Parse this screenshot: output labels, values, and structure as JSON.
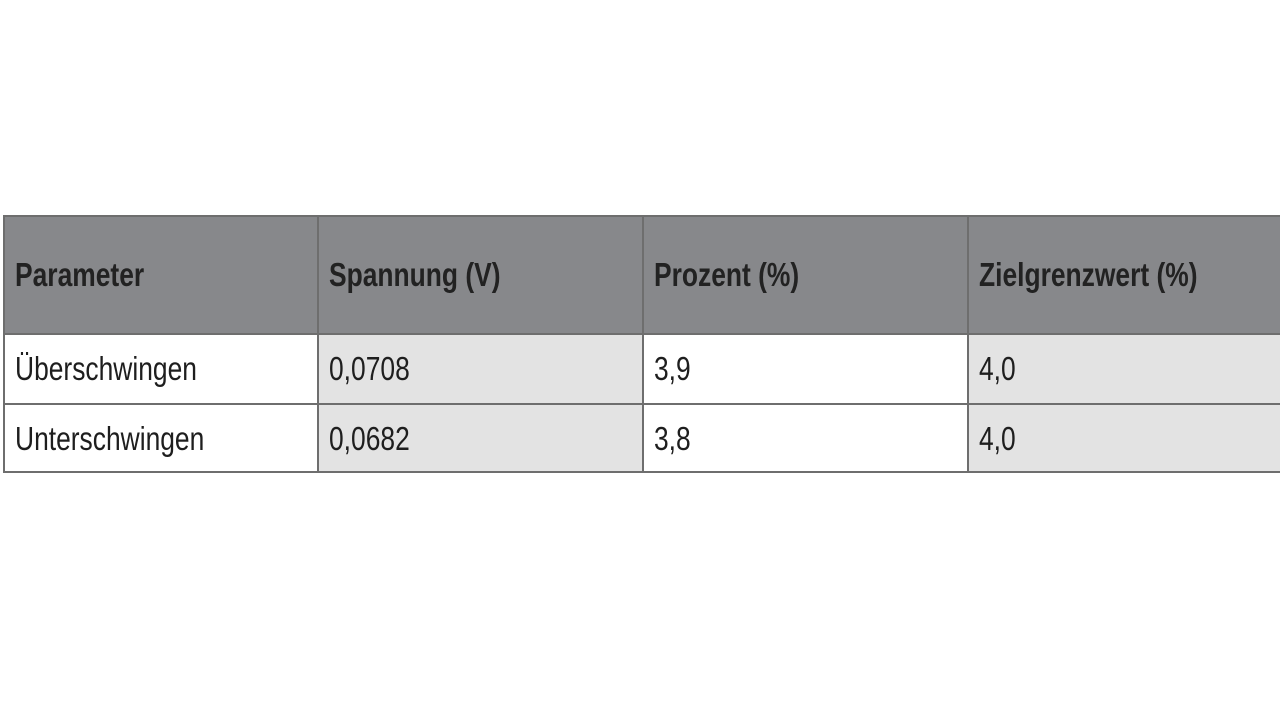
{
  "table": {
    "header": [
      "Parameter",
      "Spannung (V)",
      "Prozent (%)",
      "Zielgrenzwert (%)"
    ],
    "rows": [
      [
        "Überschwingen",
        "0,0708",
        "3,9",
        "4,0"
      ],
      [
        "Unterschwingen",
        "0,0682",
        "3,8",
        "4,0"
      ]
    ]
  }
}
